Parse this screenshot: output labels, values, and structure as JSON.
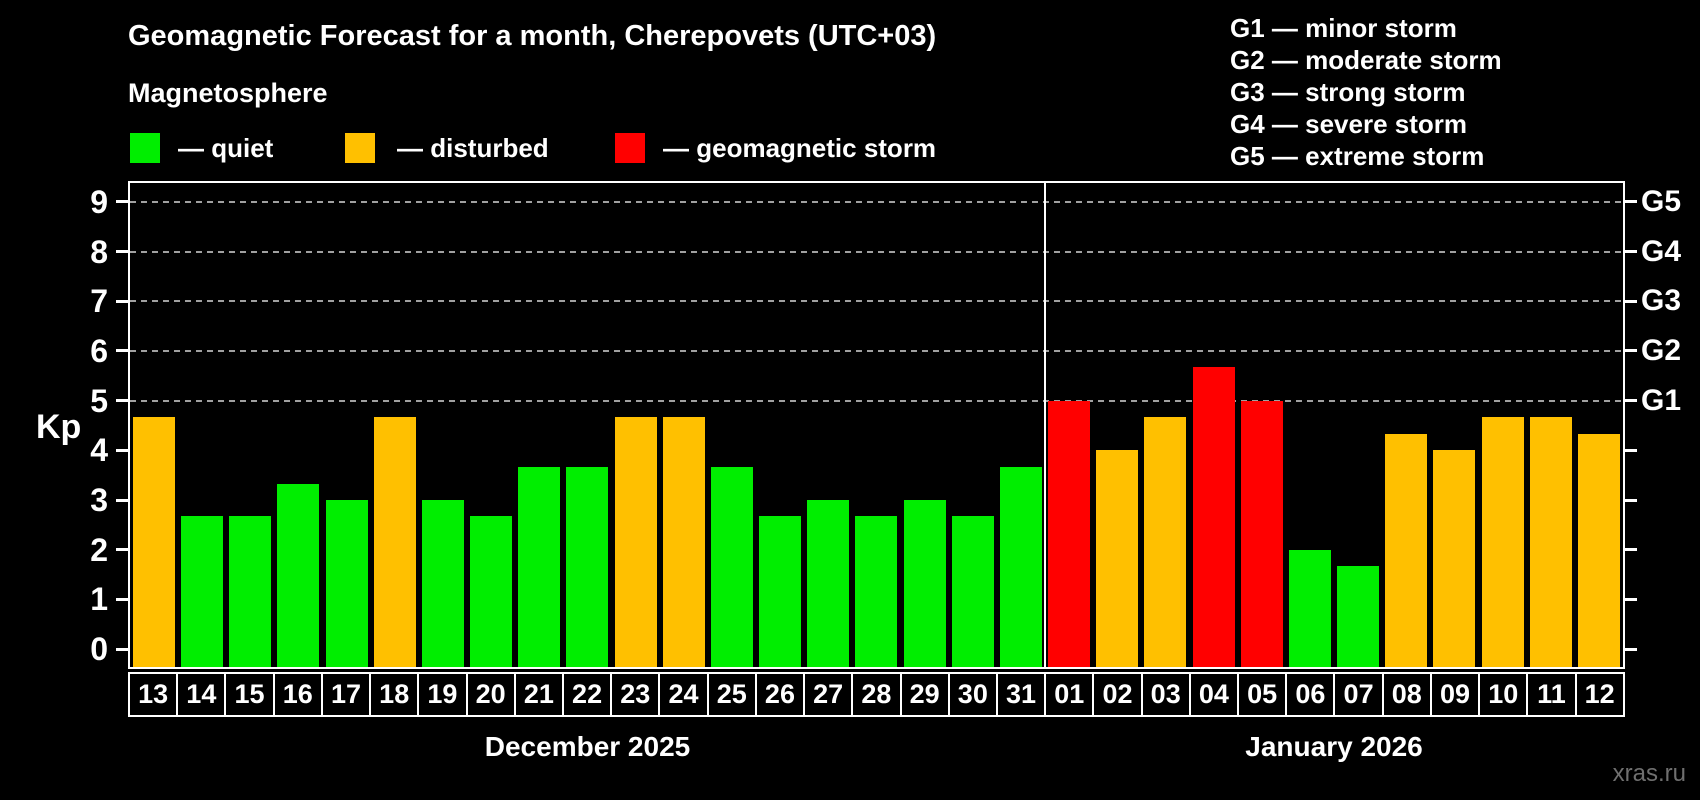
{
  "title": "Geomagnetic Forecast for a month, Cherepovets (UTC+03)",
  "subtitle": "Magnetosphere",
  "watermark": "xras.ru",
  "legend": [
    {
      "key": "quiet",
      "label": "— quiet",
      "color": "#00ee00"
    },
    {
      "key": "disturbed",
      "label": "— disturbed",
      "color": "#ffc000"
    },
    {
      "key": "storm",
      "label": "— geomagnetic storm",
      "color": "#ff0000"
    }
  ],
  "storm_scale": [
    "G1 — minor storm",
    "G2 — moderate storm",
    "G3 — strong storm",
    "G4 — severe storm",
    "G5 — extreme storm"
  ],
  "chart_data": {
    "type": "bar",
    "title": "Geomagnetic Forecast for a month, Cherepovets (UTC+03)",
    "ylabel": "Kp",
    "ylim": [
      -0.36,
      9.38
    ],
    "yticks": [
      0,
      1,
      2,
      3,
      4,
      5,
      6,
      7,
      8,
      9
    ],
    "grid": {
      "values": [
        5,
        6,
        7,
        8,
        9
      ],
      "labels": [
        "G1",
        "G2",
        "G3",
        "G4",
        "G5"
      ],
      "style": "dashed"
    },
    "colors": {
      "quiet": "#00ee00",
      "disturbed": "#ffc000",
      "storm": "#ff0000"
    },
    "sections": [
      {
        "label": "December 2025",
        "days": [
          {
            "day": "13",
            "kp": 4.67,
            "status": "disturbed"
          },
          {
            "day": "14",
            "kp": 2.67,
            "status": "quiet"
          },
          {
            "day": "15",
            "kp": 2.67,
            "status": "quiet"
          },
          {
            "day": "16",
            "kp": 3.33,
            "status": "quiet"
          },
          {
            "day": "17",
            "kp": 3.0,
            "status": "quiet"
          },
          {
            "day": "18",
            "kp": 4.67,
            "status": "disturbed"
          },
          {
            "day": "19",
            "kp": 3.0,
            "status": "quiet"
          },
          {
            "day": "20",
            "kp": 2.67,
            "status": "quiet"
          },
          {
            "day": "21",
            "kp": 3.67,
            "status": "quiet"
          },
          {
            "day": "22",
            "kp": 3.67,
            "status": "quiet"
          },
          {
            "day": "23",
            "kp": 4.67,
            "status": "disturbed"
          },
          {
            "day": "24",
            "kp": 4.67,
            "status": "disturbed"
          },
          {
            "day": "25",
            "kp": 3.67,
            "status": "quiet"
          },
          {
            "day": "26",
            "kp": 2.67,
            "status": "quiet"
          },
          {
            "day": "27",
            "kp": 3.0,
            "status": "quiet"
          },
          {
            "day": "28",
            "kp": 2.67,
            "status": "quiet"
          },
          {
            "day": "29",
            "kp": 3.0,
            "status": "quiet"
          },
          {
            "day": "30",
            "kp": 2.67,
            "status": "quiet"
          },
          {
            "day": "31",
            "kp": 3.67,
            "status": "quiet"
          }
        ]
      },
      {
        "label": "January 2026",
        "days": [
          {
            "day": "01",
            "kp": 5.0,
            "status": "storm"
          },
          {
            "day": "02",
            "kp": 4.0,
            "status": "disturbed"
          },
          {
            "day": "03",
            "kp": 4.67,
            "status": "disturbed"
          },
          {
            "day": "04",
            "kp": 5.67,
            "status": "storm"
          },
          {
            "day": "05",
            "kp": 5.0,
            "status": "storm"
          },
          {
            "day": "06",
            "kp": 2.0,
            "status": "quiet"
          },
          {
            "day": "07",
            "kp": 1.67,
            "status": "quiet"
          },
          {
            "day": "08",
            "kp": 4.33,
            "status": "disturbed"
          },
          {
            "day": "09",
            "kp": 4.0,
            "status": "disturbed"
          },
          {
            "day": "10",
            "kp": 4.67,
            "status": "disturbed"
          },
          {
            "day": "11",
            "kp": 4.67,
            "status": "disturbed"
          },
          {
            "day": "12",
            "kp": 4.33,
            "status": "disturbed"
          }
        ]
      }
    ]
  }
}
